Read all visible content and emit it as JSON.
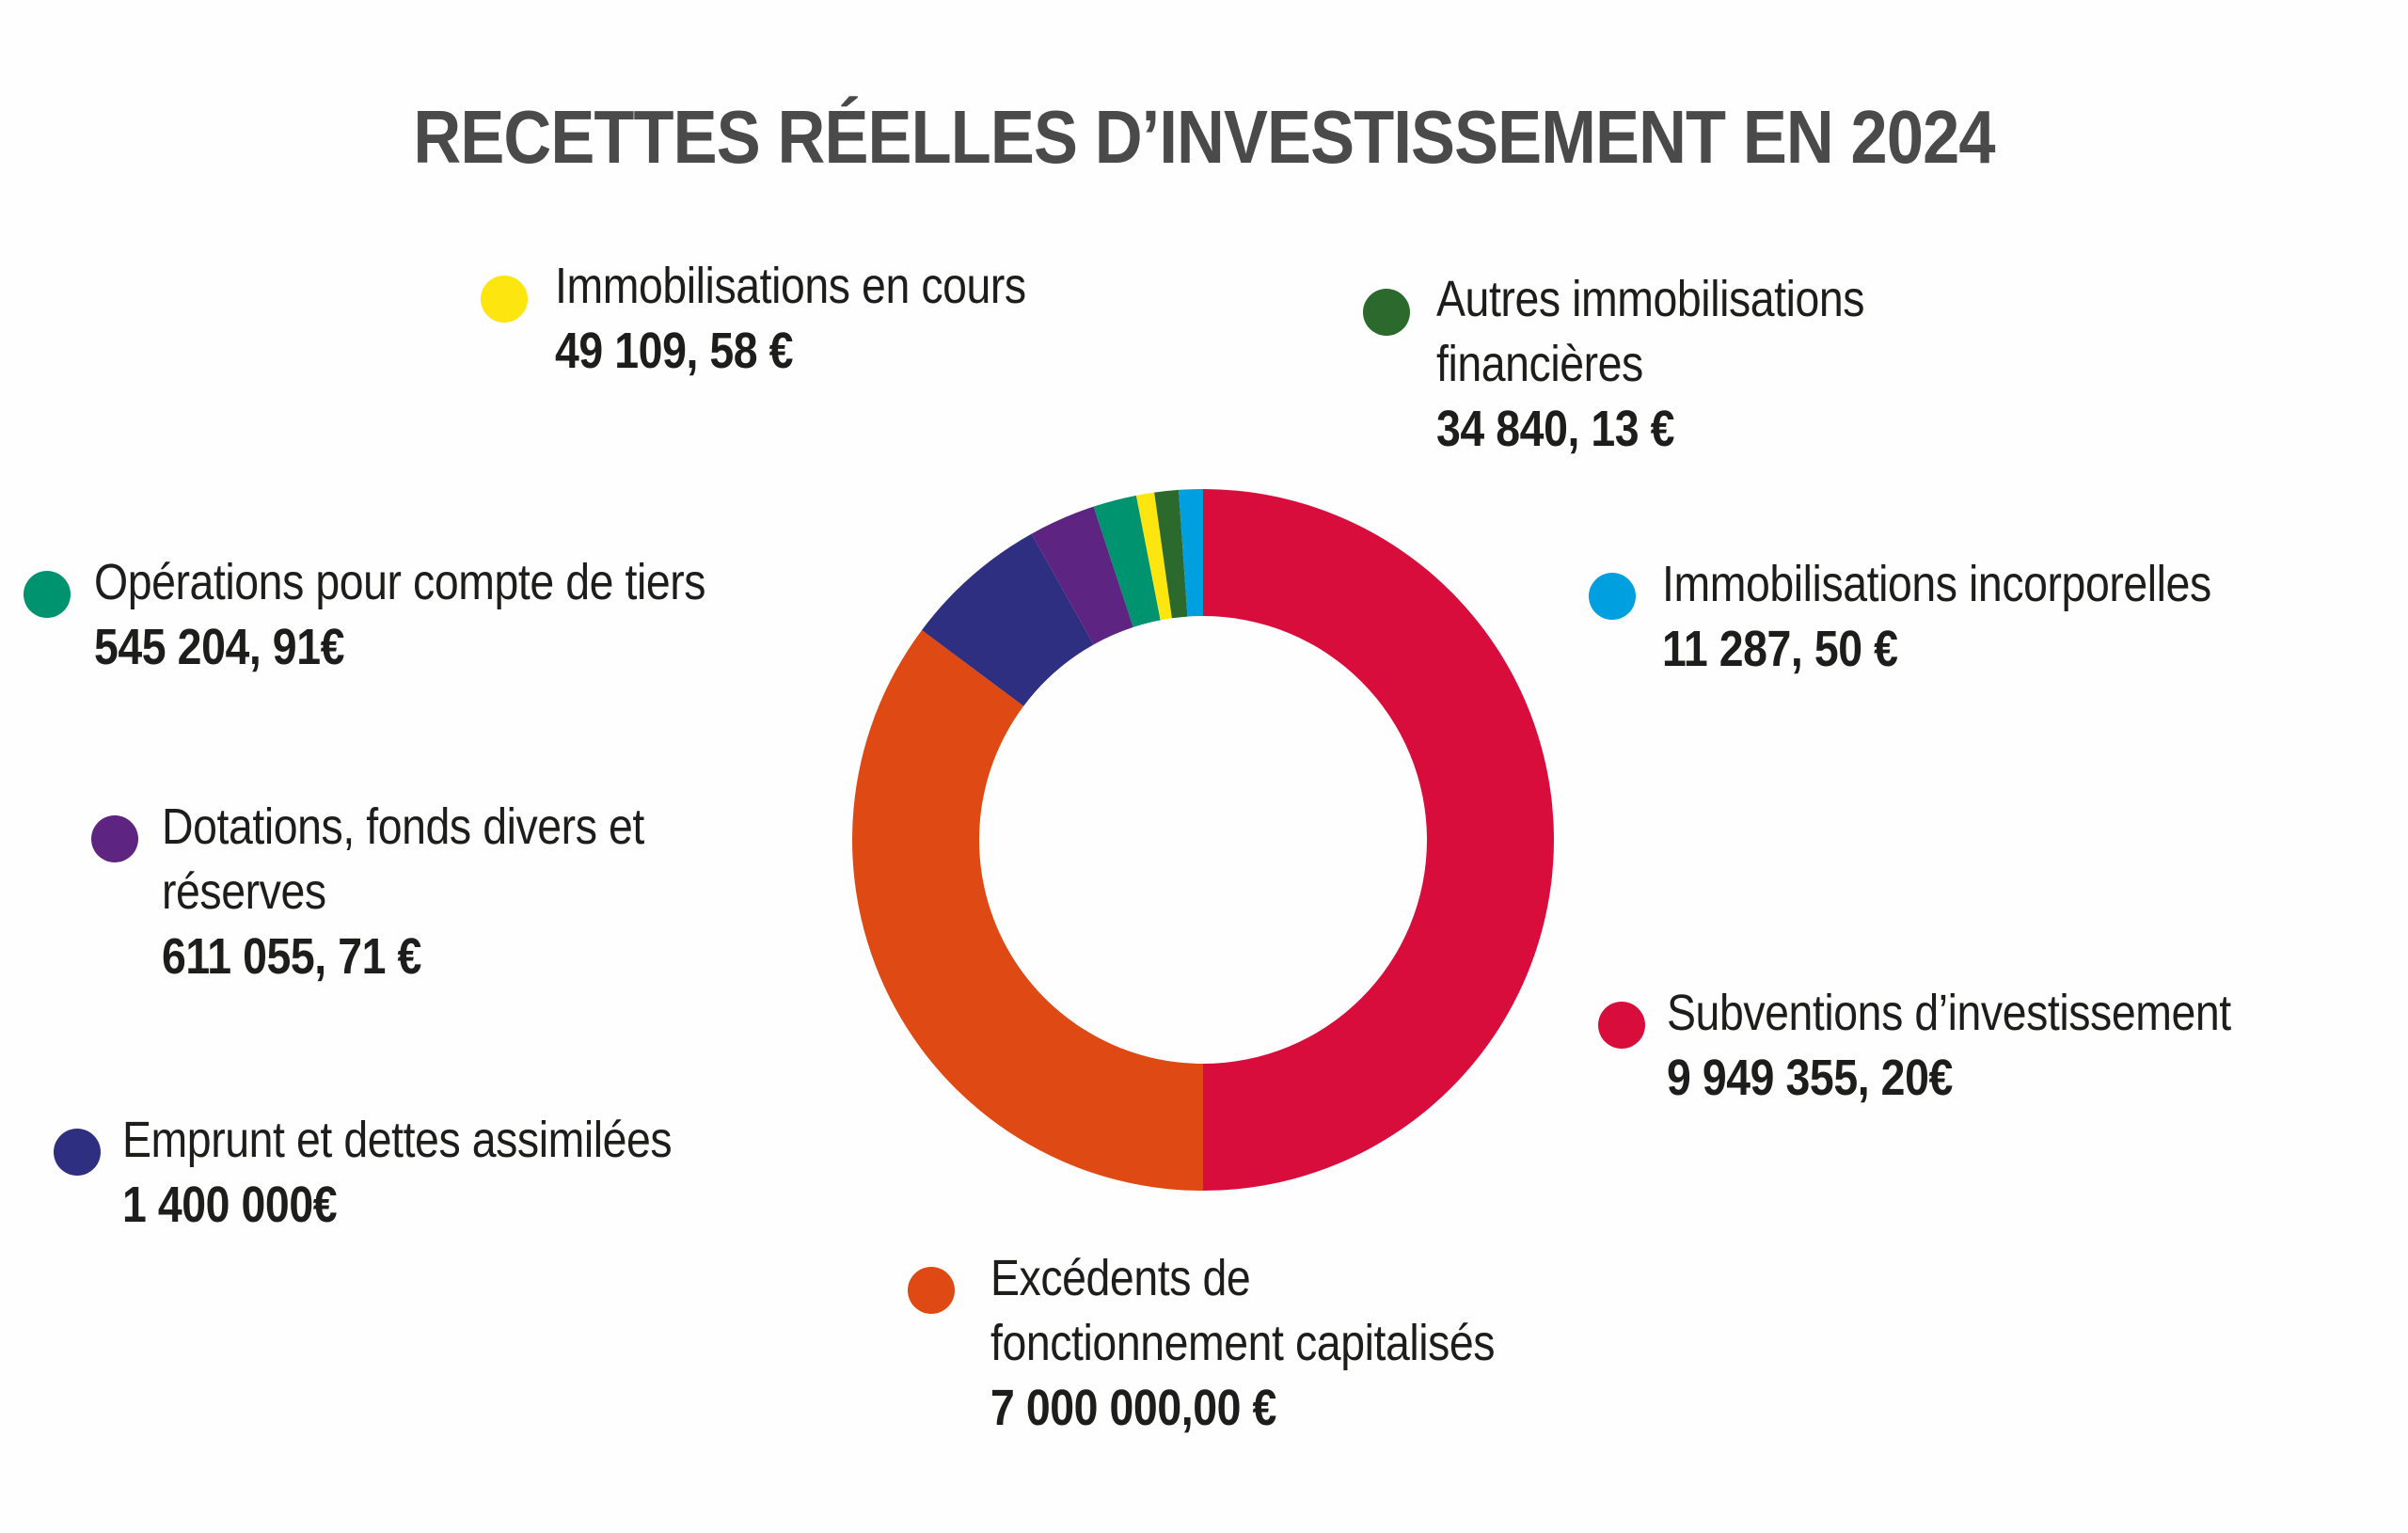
{
  "title": "RECETTES RÉELLES D’INVESTISSEMENT EN 2024",
  "chart_data": {
    "type": "pie",
    "variant": "donut",
    "title": "RECETTES RÉELLES D’INVESTISSEMENT EN 2024",
    "unit": "€",
    "start_angle_deg": 0,
    "direction": "clockwise",
    "note": "display_fraction = angular share actually drawn; small slices are visually exaggerated relative to values",
    "slices": [
      {
        "key": "subventions",
        "label": "Subventions d’investissement",
        "value": 9949355.2,
        "value_text": "9 949 355, 20€",
        "color": "#d90d3c",
        "display_fraction": 0.5
      },
      {
        "key": "excedents",
        "label": "Excédents de fonctionnement capitalisés",
        "value": 7000000.0,
        "value_text": "7 000 000,00 €",
        "color": "#df4a14",
        "display_fraction": 0.352
      },
      {
        "key": "emprunt",
        "label": "Emprunt et dettes assimilées",
        "value": 1400000,
        "value_text": "1 400 000€",
        "color": "#2e2f80",
        "display_fraction": 0.0667
      },
      {
        "key": "dotations",
        "label": "Dotations, fonds divers et réserves",
        "value": 611055.71,
        "value_text": "611 055, 71 €",
        "color": "#5e2481",
        "display_fraction": 0.0308
      },
      {
        "key": "operations",
        "label": "Opérations pour compte de tiers",
        "value": 545204.91,
        "value_text": "545 204, 91€",
        "color": "#009370",
        "display_fraction": 0.02
      },
      {
        "key": "immo_en_cours",
        "label": "Immobilisations en cours",
        "value": 49109.58,
        "value_text": "49 109, 58 €",
        "color": "#fde50f",
        "display_fraction": 0.0083
      },
      {
        "key": "autres_immo_fin",
        "label": "Autres immobilisations financières",
        "value": 34840.13,
        "value_text": "34 840, 13 €",
        "color": "#2b692d",
        "display_fraction": 0.0111
      },
      {
        "key": "immo_incorporelles",
        "label": "Immobilisations incorporelles",
        "value": 11287.5,
        "value_text": "11 287, 50 €",
        "color": "#009fe0",
        "display_fraction": 0.0111
      }
    ]
  },
  "legend": [
    {
      "key": "immo_en_cours",
      "lines": [
        "Immobilisations en cours"
      ],
      "value_text": "49 109, 58 €",
      "color": "#fde50f"
    },
    {
      "key": "autres_immo_fin",
      "lines": [
        "Autres immobilisations",
        "financières"
      ],
      "value_text": "34 840, 13 €",
      "color": "#2b692d"
    },
    {
      "key": "operations",
      "lines": [
        "Opérations pour compte de tiers"
      ],
      "value_text": "545 204, 91€",
      "color": "#009370"
    },
    {
      "key": "immo_incorporelles",
      "lines": [
        "Immobilisations incorporelles"
      ],
      "value_text": "11 287, 50 €",
      "color": "#009fe0"
    },
    {
      "key": "dotations",
      "lines": [
        "Dotations, fonds divers et",
        "réserves"
      ],
      "value_text": "611 055, 71 €",
      "color": "#5e2481"
    },
    {
      "key": "subventions",
      "lines": [
        "Subventions d’investissement"
      ],
      "value_text": "9 949 355, 20€",
      "color": "#d90d3c"
    },
    {
      "key": "emprunt",
      "lines": [
        "Emprunt et dettes assimilées"
      ],
      "value_text": "1 400 000€",
      "color": "#2e2f80"
    },
    {
      "key": "excedents",
      "lines": [
        "Excédents de",
        "fonctionnement capitalisés"
      ],
      "value_text": "7 000 000,00 €",
      "color": "#df4a14"
    }
  ]
}
